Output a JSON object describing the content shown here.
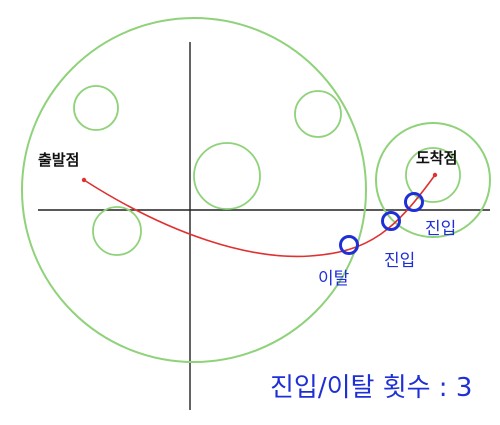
{
  "labels": {
    "start": "출발점",
    "end": "도착점",
    "exit": "이탈",
    "entry_1": "진입",
    "entry_2": "진입",
    "summary": "진입/이탈 횟수 : 3"
  },
  "colors": {
    "circle": "#8fd27a",
    "path": "#e03030",
    "marker": "#1f2fd6",
    "axis": "#222222",
    "text": "#111111"
  }
}
